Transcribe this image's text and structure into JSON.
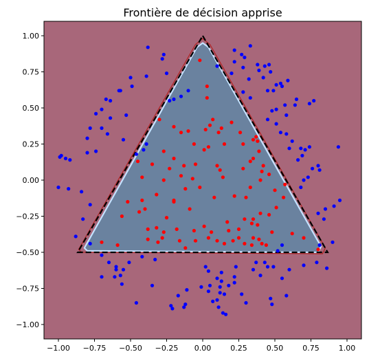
{
  "chart_data": {
    "type": "scatter",
    "title": "Frontière de décision apprise",
    "xlabel": "",
    "ylabel": "",
    "xlim": [
      -1.1,
      1.1
    ],
    "ylim": [
      -1.1,
      1.1
    ],
    "xticks": [
      "−1.00",
      "−0.75",
      "−0.50",
      "−0.25",
      "0.00",
      "0.25",
      "0.50",
      "0.75",
      "1.00"
    ],
    "yticks": [
      "1.00",
      "0.75",
      "0.50",
      "0.25",
      "0.00",
      "−0.25",
      "−0.50",
      "−0.75",
      "−1.00"
    ],
    "xtick_values": [
      -1.0,
      -0.75,
      -0.5,
      -0.25,
      0.0,
      0.25,
      0.5,
      0.75,
      1.0
    ],
    "ytick_values": [
      1.0,
      0.75,
      0.5,
      0.25,
      0.0,
      -0.25,
      -0.5,
      -0.75,
      -1.0
    ],
    "grid": false,
    "background_region": {
      "color": "#a8677a"
    },
    "decision_region": {
      "color": "#6a829f",
      "boundary_color": "#c4e2ff",
      "polygon": [
        [
          0.0,
          0.95
        ],
        [
          0.04,
          0.92
        ],
        [
          0.82,
          -0.46
        ],
        [
          0.8,
          -0.5
        ],
        [
          -0.8,
          -0.49
        ],
        [
          -0.82,
          -0.47
        ],
        [
          -0.04,
          0.92
        ]
      ]
    },
    "outer_contour": {
      "color": "#b22222",
      "polygon": [
        [
          0.0,
          0.98
        ],
        [
          0.05,
          0.94
        ],
        [
          0.85,
          -0.47
        ],
        [
          0.83,
          -0.51
        ],
        [
          -0.84,
          -0.5
        ],
        [
          -0.86,
          -0.48
        ],
        [
          -0.05,
          0.94
        ]
      ]
    },
    "true_boundary": {
      "color": "#000000",
      "dashed": true,
      "polygon": [
        [
          0.0,
          1.0
        ],
        [
          0.866,
          -0.5
        ],
        [
          -0.866,
          -0.5
        ]
      ]
    },
    "series": [
      {
        "color": "#ff0000",
        "points": [
          [
            -0.02,
            0.83
          ],
          [
            0.03,
            0.65
          ],
          [
            0.03,
            0.57
          ],
          [
            0.07,
            0.42
          ],
          [
            0.05,
            0.38
          ],
          [
            0.02,
            0.35
          ],
          [
            0.11,
            0.33
          ],
          [
            0.13,
            0.36
          ],
          [
            0.15,
            0.25
          ],
          [
            0.2,
            0.4
          ],
          [
            0.26,
            0.33
          ],
          [
            0.28,
            0.25
          ],
          [
            0.35,
            0.28
          ],
          [
            0.37,
            0.3
          ],
          [
            0.38,
            0.27
          ],
          [
            0.35,
            0.15
          ],
          [
            0.39,
            0.2
          ],
          [
            -0.3,
            0.42
          ],
          [
            -0.2,
            0.37
          ],
          [
            -0.15,
            0.33
          ],
          [
            -0.1,
            0.34
          ],
          [
            -0.06,
            0.25
          ],
          [
            0.01,
            0.21
          ],
          [
            0.04,
            0.23
          ],
          [
            -0.05,
            0.11
          ],
          [
            -0.13,
            0.1
          ],
          [
            -0.15,
            0.03
          ],
          [
            -0.27,
            0.2
          ],
          [
            -0.35,
            0.11
          ],
          [
            -0.23,
            0.08
          ],
          [
            -0.45,
            0.13
          ],
          [
            -0.42,
            0.02
          ],
          [
            -0.27,
            0.0
          ],
          [
            -0.07,
            0.01
          ],
          [
            0.14,
            0.02
          ],
          [
            0.28,
            0.08
          ],
          [
            0.33,
            0.13
          ],
          [
            0.41,
            0.06
          ],
          [
            0.46,
            0.04
          ],
          [
            0.4,
            0.0
          ],
          [
            0.33,
            -0.05
          ],
          [
            0.3,
            -0.12
          ],
          [
            0.22,
            -0.11
          ],
          [
            0.08,
            -0.12
          ],
          [
            -0.02,
            -0.05
          ],
          [
            -0.12,
            -0.06
          ],
          [
            -0.2,
            -0.14
          ],
          [
            -0.32,
            -0.1
          ],
          [
            -0.42,
            -0.14
          ],
          [
            -0.4,
            -0.2
          ],
          [
            -0.44,
            -0.22
          ],
          [
            -0.52,
            -0.15
          ],
          [
            -0.56,
            -0.25
          ],
          [
            -0.38,
            -0.34
          ],
          [
            -0.32,
            -0.33
          ],
          [
            -0.27,
            -0.36
          ],
          [
            -0.18,
            -0.34
          ],
          [
            -0.16,
            -0.42
          ],
          [
            -0.28,
            -0.4
          ],
          [
            -0.31,
            -0.43
          ],
          [
            -0.38,
            -0.41
          ],
          [
            -0.12,
            -0.47
          ],
          [
            -0.05,
            -0.42
          ],
          [
            0.04,
            -0.4
          ],
          [
            0.06,
            -0.36
          ],
          [
            0.01,
            -0.32
          ],
          [
            0.17,
            -0.29
          ],
          [
            0.18,
            -0.35
          ],
          [
            0.25,
            -0.34
          ],
          [
            0.29,
            -0.27
          ],
          [
            0.35,
            -0.27
          ],
          [
            0.34,
            -0.3
          ],
          [
            0.38,
            -0.31
          ],
          [
            0.35,
            -0.4
          ],
          [
            0.39,
            -0.41
          ],
          [
            0.41,
            -0.44
          ],
          [
            0.4,
            -0.23
          ],
          [
            0.46,
            -0.24
          ],
          [
            0.51,
            -0.19
          ],
          [
            0.56,
            -0.12
          ],
          [
            0.57,
            -0.03
          ],
          [
            0.5,
            -0.07
          ],
          [
            0.44,
            -0.45
          ],
          [
            0.34,
            -0.45
          ],
          [
            0.25,
            -0.4
          ],
          [
            0.21,
            -0.42
          ],
          [
            0.1,
            -0.42
          ],
          [
            0.15,
            -0.44
          ],
          [
            0.29,
            -0.44
          ],
          [
            -0.2,
            -0.15
          ],
          [
            -0.06,
            -0.35
          ],
          [
            -0.09,
            -0.2
          ],
          [
            -0.25,
            -0.26
          ],
          [
            0.12,
            0.07
          ],
          [
            0.42,
            0.1
          ],
          [
            0.48,
            -0.36
          ],
          [
            0.7,
            -0.4
          ],
          [
            0.62,
            -0.37
          ],
          [
            0.8,
            -0.48
          ],
          [
            -0.59,
            -0.45
          ],
          [
            -0.7,
            -0.43
          ],
          [
            -0.2,
            0.15
          ],
          [
            0.1,
            0.1
          ]
        ]
      },
      {
        "color": "#0000ff",
        "points": [
          [
            -0.38,
            0.92
          ],
          [
            -0.27,
            0.87
          ],
          [
            -0.28,
            0.84
          ],
          [
            -0.25,
            0.74
          ],
          [
            -0.39,
            0.72
          ],
          [
            -0.5,
            0.71
          ],
          [
            -0.49,
            0.65
          ],
          [
            -0.58,
            0.62
          ],
          [
            -0.57,
            0.62
          ],
          [
            -0.64,
            0.55
          ],
          [
            -0.67,
            0.56
          ],
          [
            -0.7,
            0.49
          ],
          [
            -0.74,
            0.46
          ],
          [
            -0.64,
            0.43
          ],
          [
            -0.78,
            0.36
          ],
          [
            -0.7,
            0.36
          ],
          [
            -0.66,
            0.32
          ],
          [
            -0.8,
            0.29
          ],
          [
            -0.55,
            0.28
          ],
          [
            -0.46,
            0.18
          ],
          [
            -0.41,
            0.21
          ],
          [
            -0.39,
            0.25
          ],
          [
            -0.8,
            0.19
          ],
          [
            -0.74,
            0.2
          ],
          [
            -0.99,
            0.16
          ],
          [
            -0.98,
            0.17
          ],
          [
            -0.95,
            0.15
          ],
          [
            -0.92,
            0.14
          ],
          [
            -1.0,
            -0.05
          ],
          [
            -0.93,
            -0.06
          ],
          [
            -0.84,
            -0.08
          ],
          [
            -0.78,
            -0.17
          ],
          [
            -0.83,
            -0.27
          ],
          [
            -0.88,
            -0.39
          ],
          [
            -0.78,
            -0.44
          ],
          [
            -0.7,
            -0.52
          ],
          [
            -0.65,
            -0.57
          ],
          [
            -0.6,
            -0.6
          ],
          [
            -0.6,
            -0.62
          ],
          [
            -0.55,
            -0.62
          ],
          [
            -0.57,
            -0.66
          ],
          [
            -0.61,
            -0.67
          ],
          [
            -0.7,
            -0.67
          ],
          [
            -0.56,
            -0.72
          ],
          [
            -0.51,
            -0.57
          ],
          [
            -0.42,
            -0.53
          ],
          [
            -0.33,
            -0.55
          ],
          [
            -0.35,
            -0.73
          ],
          [
            -0.46,
            -0.85
          ],
          [
            -0.22,
            -0.87
          ],
          [
            -0.17,
            -0.8
          ],
          [
            -0.21,
            -0.89
          ],
          [
            -0.13,
            -0.88
          ],
          [
            -0.11,
            -0.76
          ],
          [
            -0.12,
            -0.86
          ],
          [
            0.05,
            -0.73
          ],
          [
            0.04,
            -0.77
          ],
          [
            0.07,
            -0.84
          ],
          [
            -0.01,
            -0.74
          ],
          [
            0.02,
            -0.6
          ],
          [
            0.04,
            -0.63
          ],
          [
            0.1,
            -0.68
          ],
          [
            0.1,
            -0.83
          ],
          [
            0.11,
            -0.88
          ],
          [
            0.13,
            -0.7
          ],
          [
            0.12,
            -0.74
          ],
          [
            0.13,
            -0.64
          ],
          [
            0.15,
            -0.79
          ],
          [
            0.18,
            -0.73
          ],
          [
            0.12,
            -0.78
          ],
          [
            0.14,
            -0.92
          ],
          [
            0.16,
            -0.93
          ],
          [
            0.22,
            -0.67
          ],
          [
            0.23,
            -0.6
          ],
          [
            0.22,
            -0.71
          ],
          [
            0.27,
            -0.79
          ],
          [
            0.3,
            -0.85
          ],
          [
            0.35,
            -0.62
          ],
          [
            0.37,
            -0.57
          ],
          [
            0.4,
            -0.66
          ],
          [
            0.43,
            -0.57
          ],
          [
            0.45,
            -0.6
          ],
          [
            0.49,
            -0.6
          ],
          [
            0.47,
            -0.82
          ],
          [
            0.48,
            -0.86
          ],
          [
            0.55,
            -0.68
          ],
          [
            0.6,
            -0.62
          ],
          [
            0.7,
            -0.59
          ],
          [
            0.79,
            -0.57
          ],
          [
            0.86,
            -0.61
          ],
          [
            0.58,
            -0.8
          ],
          [
            0.52,
            -0.49
          ],
          [
            0.55,
            -0.45
          ],
          [
            0.81,
            -0.45
          ],
          [
            0.9,
            -0.43
          ],
          [
            0.85,
            -0.2
          ],
          [
            0.91,
            -0.18
          ],
          [
            0.95,
            -0.14
          ],
          [
            0.8,
            -0.23
          ],
          [
            0.84,
            -0.27
          ],
          [
            0.68,
            -0.05
          ],
          [
            0.7,
            0.0
          ],
          [
            0.73,
            0.02
          ],
          [
            0.76,
            0.08
          ],
          [
            0.8,
            0.1
          ],
          [
            0.81,
            0.07
          ],
          [
            0.66,
            0.14
          ],
          [
            0.69,
            0.17
          ],
          [
            0.71,
            0.21
          ],
          [
            0.74,
            0.23
          ],
          [
            0.68,
            0.22
          ],
          [
            0.94,
            0.23
          ],
          [
            0.6,
            0.22
          ],
          [
            0.58,
            0.32
          ],
          [
            0.62,
            0.27
          ],
          [
            0.54,
            0.33
          ],
          [
            0.51,
            0.39
          ],
          [
            0.45,
            0.42
          ],
          [
            0.51,
            0.49
          ],
          [
            0.58,
            0.45
          ],
          [
            0.64,
            0.52
          ],
          [
            0.57,
            0.52
          ],
          [
            0.48,
            0.48
          ],
          [
            0.49,
            0.62
          ],
          [
            0.45,
            0.62
          ],
          [
            0.51,
            0.66
          ],
          [
            0.54,
            0.67
          ],
          [
            0.55,
            0.65
          ],
          [
            0.59,
            0.69
          ],
          [
            0.74,
            0.53
          ],
          [
            0.77,
            0.55
          ],
          [
            0.65,
            0.56
          ],
          [
            0.38,
            0.8
          ],
          [
            0.43,
            0.79
          ],
          [
            0.46,
            0.8
          ],
          [
            0.39,
            0.76
          ],
          [
            0.47,
            0.75
          ],
          [
            0.42,
            0.71
          ],
          [
            0.32,
            0.7
          ],
          [
            0.28,
            0.78
          ],
          [
            0.22,
            0.82
          ],
          [
            0.22,
            0.9
          ],
          [
            0.27,
            0.87
          ],
          [
            0.29,
            0.85
          ],
          [
            0.33,
            0.93
          ],
          [
            0.2,
            0.74
          ],
          [
            0.1,
            0.79
          ],
          [
            0.28,
            0.61
          ],
          [
            0.33,
            0.57
          ],
          [
            -0.1,
            0.62
          ],
          [
            -0.15,
            0.58
          ],
          [
            -0.23,
            0.55
          ],
          [
            -0.2,
            0.56
          ],
          [
            -0.53,
            0.45
          ]
        ]
      }
    ]
  }
}
